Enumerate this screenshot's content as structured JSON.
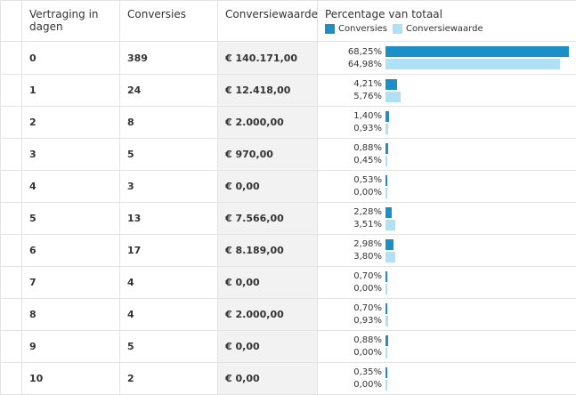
{
  "headers": {
    "delay": "Vertraging in dagen",
    "conversions": "Conversies",
    "value": "Conversiewaarde",
    "percentage": "Percentage van totaal",
    "legend_conversions": "Conversies",
    "legend_value": "Conversiewaarde"
  },
  "colors": {
    "conversions": "#1b8fc6",
    "value": "#aee0f6"
  },
  "rows": [
    {
      "delay": "0",
      "conversions": "389",
      "value": "€ 140.171,00",
      "pct_conv": "68,25%",
      "pct_val": "64,98%",
      "conv": 68.25,
      "val": 64.98
    },
    {
      "delay": "1",
      "conversions": "24",
      "value": "€ 12.418,00",
      "pct_conv": "4,21%",
      "pct_val": "5,76%",
      "conv": 4.21,
      "val": 5.76
    },
    {
      "delay": "2",
      "conversions": "8",
      "value": "€ 2.000,00",
      "pct_conv": "1,40%",
      "pct_val": "0,93%",
      "conv": 1.4,
      "val": 0.93
    },
    {
      "delay": "3",
      "conversions": "5",
      "value": "€ 970,00",
      "pct_conv": "0,88%",
      "pct_val": "0,45%",
      "conv": 0.88,
      "val": 0.45
    },
    {
      "delay": "4",
      "conversions": "3",
      "value": "€ 0,00",
      "pct_conv": "0,53%",
      "pct_val": "0,00%",
      "conv": 0.53,
      "val": 0.0
    },
    {
      "delay": "5",
      "conversions": "13",
      "value": "€ 7.566,00",
      "pct_conv": "2,28%",
      "pct_val": "3,51%",
      "conv": 2.28,
      "val": 3.51
    },
    {
      "delay": "6",
      "conversions": "17",
      "value": "€ 8.189,00",
      "pct_conv": "2,98%",
      "pct_val": "3,80%",
      "conv": 2.98,
      "val": 3.8
    },
    {
      "delay": "7",
      "conversions": "4",
      "value": "€ 0,00",
      "pct_conv": "0,70%",
      "pct_val": "0,00%",
      "conv": 0.7,
      "val": 0.0
    },
    {
      "delay": "8",
      "conversions": "4",
      "value": "€ 2.000,00",
      "pct_conv": "0,70%",
      "pct_val": "0,93%",
      "conv": 0.7,
      "val": 0.93
    },
    {
      "delay": "9",
      "conversions": "5",
      "value": "€ 0,00",
      "pct_conv": "0,88%",
      "pct_val": "0,00%",
      "conv": 0.88,
      "val": 0.0
    },
    {
      "delay": "10",
      "conversions": "2",
      "value": "€ 0,00",
      "pct_conv": "0,35%",
      "pct_val": "0,00%",
      "conv": 0.35,
      "val": 0.0
    }
  ]
}
